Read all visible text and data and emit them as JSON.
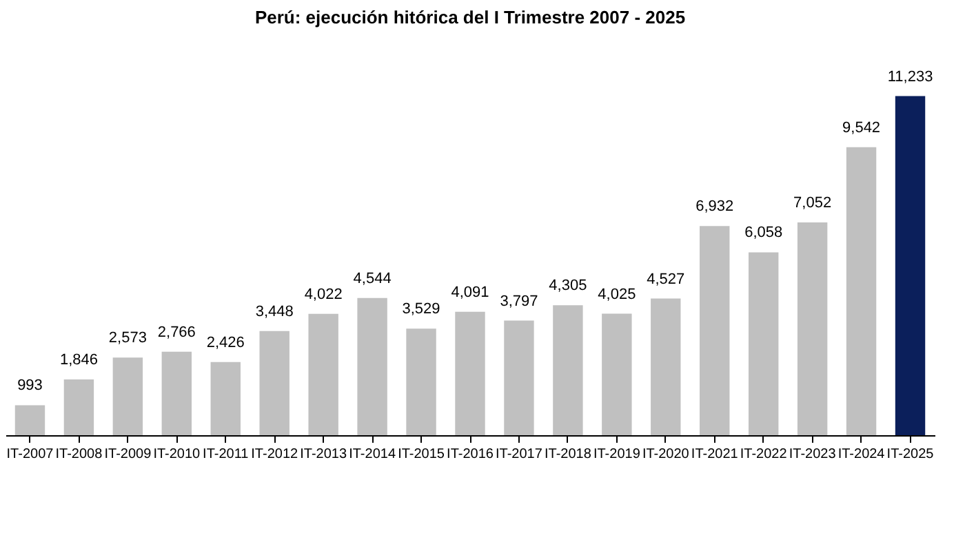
{
  "chart_data": {
    "type": "bar",
    "title": "Perú: ejecución hitórica del I Trimestre 2007 - 2025",
    "categories": [
      "IT-2007",
      "IT-2008",
      "IT-2009",
      "IT-2010",
      "IT-2011",
      "IT-2012",
      "IT-2013",
      "IT-2014",
      "IT-2015",
      "IT-2016",
      "IT-2017",
      "IT-2018",
      "IT-2019",
      "IT-2020",
      "IT-2021",
      "IT-2022",
      "IT-2023",
      "IT-2024",
      "IT-2025"
    ],
    "values": [
      993,
      1846,
      2573,
      2766,
      2426,
      3448,
      4022,
      4544,
      3529,
      4091,
      3797,
      4305,
      4025,
      4527,
      6932,
      6058,
      7052,
      9542,
      11233
    ],
    "value_labels": [
      "993",
      "1,846",
      "2,573",
      "2,766",
      "2,426",
      "3,448",
      "4,022",
      "4,544",
      "3,529",
      "4,091",
      "3,797",
      "4,305",
      "4,025",
      "4,527",
      "6,932",
      "6,058",
      "7,052",
      "9,542",
      "11,233"
    ],
    "colors": [
      "#c0c0c0",
      "#c0c0c0",
      "#c0c0c0",
      "#c0c0c0",
      "#c0c0c0",
      "#c0c0c0",
      "#c0c0c0",
      "#c0c0c0",
      "#c0c0c0",
      "#c0c0c0",
      "#c0c0c0",
      "#c0c0c0",
      "#c0c0c0",
      "#c0c0c0",
      "#c0c0c0",
      "#c0c0c0",
      "#c0c0c0",
      "#c0c0c0",
      "#0b1f5b"
    ],
    "grid": false
  }
}
